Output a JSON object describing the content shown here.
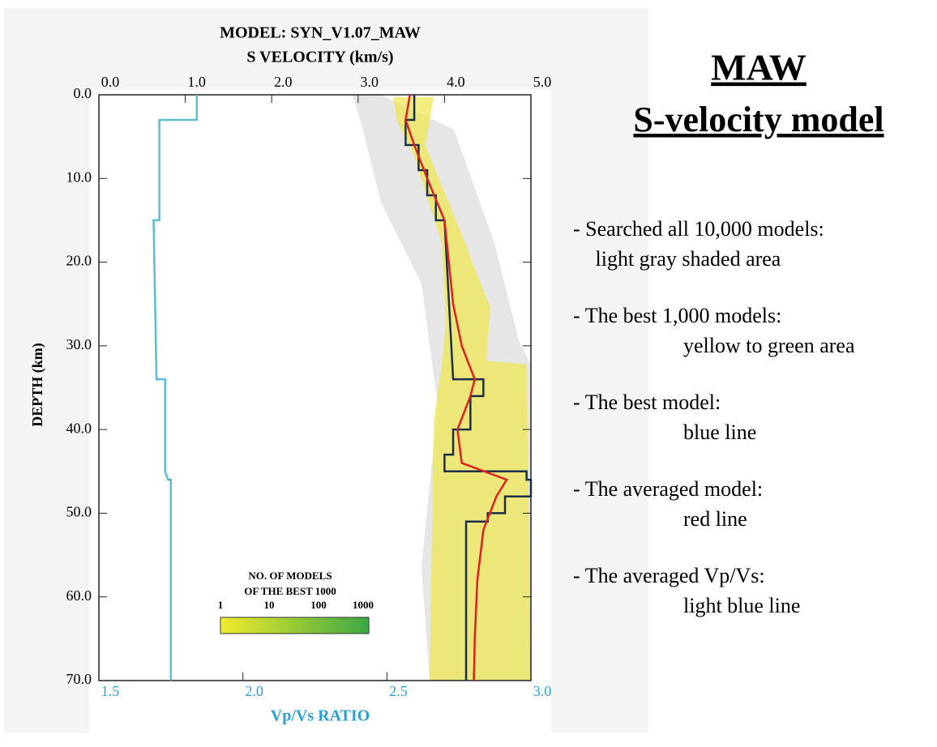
{
  "chart_data": {
    "type": "line",
    "title": [
      "MODEL: SYN_V1.07_MAW",
      "S VELOCITY (km/s)"
    ],
    "ylabel": "DEPTH (km)",
    "x2label": "Vp/Vs RATIO",
    "ylim": [
      0,
      70
    ],
    "xlim": [
      0,
      5
    ],
    "x2lim": [
      1.5,
      3
    ],
    "yticks": [
      {
        "value": 0,
        "label": "0.0"
      },
      {
        "value": 10,
        "label": "10.0"
      },
      {
        "value": 20,
        "label": "20.0"
      },
      {
        "value": 30,
        "label": "30.0"
      },
      {
        "value": 40,
        "label": "40.0"
      },
      {
        "value": 50,
        "label": "50.0"
      },
      {
        "value": 60,
        "label": "60.0"
      },
      {
        "value": 70,
        "label": "70.0"
      }
    ],
    "xticks": [
      {
        "value": 0,
        "label": "0.0"
      },
      {
        "value": 1,
        "label": "1.0"
      },
      {
        "value": 2,
        "label": "2.0"
      },
      {
        "value": 3,
        "label": "3.0"
      },
      {
        "value": 4,
        "label": "4.0"
      },
      {
        "value": 5,
        "label": "5.0"
      }
    ],
    "x2ticks": [
      1.5,
      {
        "value": 2,
        "label": "2.0"
      },
      2.5,
      {
        "value": 3,
        "label": "3.0"
      }
    ],
    "series": [
      {
        "color": "#1c2f4a",
        "depth": [
          0,
          3,
          3,
          6,
          6,
          9,
          9,
          12,
          12,
          15,
          15,
          34,
          34,
          36,
          36,
          40,
          40,
          43,
          43,
          45,
          45,
          46,
          46,
          48,
          48,
          50,
          50,
          51,
          51,
          70
        ],
        "values": [
          3.65,
          3.65,
          3.55,
          3.55,
          3.7,
          3.7,
          3.8,
          3.8,
          3.9,
          3.9,
          4.0,
          4.1,
          4.45,
          4.45,
          4.3,
          4.3,
          4.1,
          4.1,
          4.0,
          4.0,
          4.95,
          4.95,
          5.0,
          5.0,
          4.7,
          4.7,
          4.5,
          4.5,
          4.25,
          4.25
        ]
      },
      {
        "color": "#e02020",
        "depth": [
          0,
          3,
          6,
          10,
          15,
          20,
          25,
          30,
          34,
          36,
          40,
          44,
          46,
          48,
          52,
          58,
          65,
          70
        ],
        "values": [
          3.6,
          3.55,
          3.65,
          3.8,
          4.0,
          4.05,
          4.1,
          4.2,
          4.35,
          4.3,
          4.15,
          4.2,
          4.72,
          4.6,
          4.45,
          4.38,
          4.35,
          4.34
        ]
      },
      {
        "color": "#5bbcd6",
        "axis": "x2",
        "depth": [
          0,
          3,
          3,
          15,
          15,
          34,
          34,
          45,
          45,
          46,
          46,
          70
        ],
        "values": [
          1.84,
          1.84,
          1.71,
          1.71,
          1.69,
          1.7,
          1.73,
          1.73,
          1.73,
          1.74,
          1.75,
          1.75
        ]
      }
    ],
    "colorbar": {
      "title": [
        "NO. OF MODELS",
        "OF THE BEST 1000"
      ],
      "ticks": [
        1,
        10,
        100,
        1000
      ],
      "colors": [
        "#f2ec2a",
        "#3aa844"
      ]
    }
  },
  "text_panel": {
    "title": [
      "MAW",
      "S-velocity model"
    ],
    "items": [
      [
        "- Searched all 10,000 models:",
        " light gray shaded area"
      ],
      [
        "- The best 1,000 models:",
        "yellow to green area"
      ],
      [
        "- The best model:",
        "blue line"
      ],
      [
        "- The averaged model:",
        "red line"
      ],
      [
        "- The averaged Vp/Vs:",
        "light blue line"
      ]
    ]
  }
}
